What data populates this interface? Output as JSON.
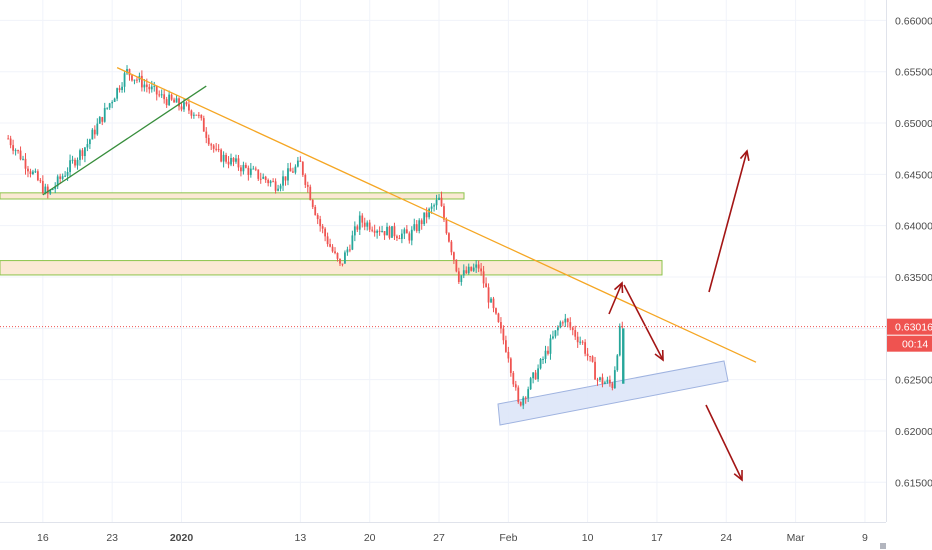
{
  "chart_data": {
    "type": "candlestick",
    "title": "",
    "ylim": [
      0.6105,
      0.6615
    ],
    "y_ticks": [
      "0.66000",
      "0.65500",
      "0.65000",
      "0.64500",
      "0.64000",
      "0.63500",
      "0.63000",
      "0.62500",
      "0.62000",
      "0.61500"
    ],
    "x_ticks": [
      {
        "label": "16",
        "day": -14
      },
      {
        "label": "23",
        "day": -7
      },
      {
        "label": "2020",
        "day": 0,
        "bold": true
      },
      {
        "label": "13",
        "day": 12
      },
      {
        "label": "20",
        "day": 19
      },
      {
        "label": "27",
        "day": 26
      },
      {
        "label": "Feb",
        "day": 33
      },
      {
        "label": "10",
        "day": 41
      },
      {
        "label": "17",
        "day": 48
      },
      {
        "label": "24",
        "day": 55
      },
      {
        "label": "Mar",
        "day": 62
      },
      {
        "label": "9",
        "day": 69
      }
    ],
    "x_range_days": [
      -18.3,
      70.5
    ],
    "current_price": {
      "value": "0.63016",
      "countdown": "00:14",
      "y": 0.63016
    },
    "key_points": [
      {
        "day": -17.5,
        "close": 0.6485
      },
      {
        "day": -13.5,
        "close": 0.643
      },
      {
        "day": -9.5,
        "close": 0.648
      },
      {
        "day": -5.5,
        "close": 0.655
      },
      {
        "day": -2.0,
        "close": 0.6525
      },
      {
        "day": 1.5,
        "close": 0.651
      },
      {
        "day": 3.5,
        "close": 0.647
      },
      {
        "day": 6.5,
        "close": 0.6455
      },
      {
        "day": 9.5,
        "close": 0.644
      },
      {
        "day": 12.0,
        "close": 0.646
      },
      {
        "day": 14.0,
        "close": 0.64
      },
      {
        "day": 16.0,
        "close": 0.636
      },
      {
        "day": 18.0,
        "close": 0.6405
      },
      {
        "day": 20.5,
        "close": 0.6395
      },
      {
        "day": 23.0,
        "close": 0.639
      },
      {
        "day": 26.0,
        "close": 0.6425
      },
      {
        "day": 28.0,
        "close": 0.635
      },
      {
        "day": 30.0,
        "close": 0.636
      },
      {
        "day": 31.0,
        "close": 0.633
      },
      {
        "day": 33.0,
        "close": 0.6275
      },
      {
        "day": 34.0,
        "close": 0.6225
      },
      {
        "day": 36.0,
        "close": 0.626
      },
      {
        "day": 38.5,
        "close": 0.631
      },
      {
        "day": 40.5,
        "close": 0.6285
      },
      {
        "day": 42.0,
        "close": 0.625
      },
      {
        "day": 43.5,
        "close": 0.6245
      },
      {
        "day": 44.3,
        "close": 0.63
      },
      {
        "day": 44.6,
        "close": 0.63016
      }
    ],
    "annotations": {
      "trendlines": [
        {
          "color": "#f5a623",
          "from": [
            -6.5,
            0.6554
          ],
          "to": [
            58.0,
            0.6267
          ]
        },
        {
          "color": "#388e3c",
          "from": [
            -14.0,
            0.643
          ],
          "to": [
            2.5,
            0.6536
          ]
        }
      ],
      "zones": [
        {
          "fill": "#fbe9d4",
          "stroke": "#8bc34a",
          "y": [
            0.6426,
            0.6432
          ]
        },
        {
          "fill": "#fbe9d4",
          "stroke": "#8bc34a",
          "y": [
            0.6352,
            0.6366
          ]
        }
      ],
      "channel": {
        "fill": "#dde6f8",
        "stroke": "#9fb3e0"
      },
      "arrows_color": "#a31515"
    }
  }
}
